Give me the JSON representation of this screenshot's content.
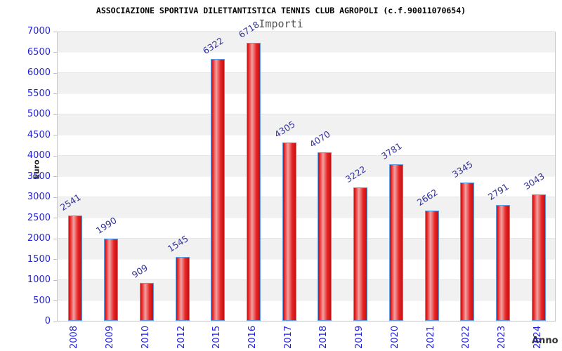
{
  "header": {
    "title": "ASSOCIAZIONE SPORTIVA DILETTANTISTICA TENNIS CLUB AGROPOLI (c.f.90011070654)",
    "subtitle": "Importi"
  },
  "chart_data": {
    "type": "bar",
    "title": "ASSOCIAZIONE SPORTIVA DILETTANTISTICA TENNIS CLUB AGROPOLI (c.f.90011070654)",
    "subtitle": "Importi",
    "xlabel": "Anno",
    "ylabel": "Euro",
    "categories": [
      "2008",
      "2009",
      "2010",
      "2012",
      "2015",
      "2016",
      "2017",
      "2018",
      "2019",
      "2020",
      "2021",
      "2022",
      "2023",
      "2024"
    ],
    "values": [
      2541,
      1990,
      909,
      1545,
      6322,
      6718,
      4305,
      4070,
      3222,
      3781,
      2662,
      3345,
      2791,
      3043
    ],
    "ylim": [
      0,
      7000
    ],
    "ytick_step": 500,
    "grid": "alternating-horizontal-bands",
    "legend": false,
    "value_labels": "rotated-above-bars",
    "colors": {
      "bar_fill_main": "#e82222",
      "bar_fill_highlight": "#f0a3a3",
      "bar_fill_edge": "#c01414",
      "bar_border": "#5b9ce6",
      "axis_tick_label": "#2222dd",
      "value_label": "#333399",
      "band_gray": "#f1f1f1",
      "band_white": "#ffffff",
      "plot_border": "#c9c9c9",
      "title_color": "#000000",
      "subtitle_color": "#555555",
      "axis_title_color": "#222222"
    }
  }
}
